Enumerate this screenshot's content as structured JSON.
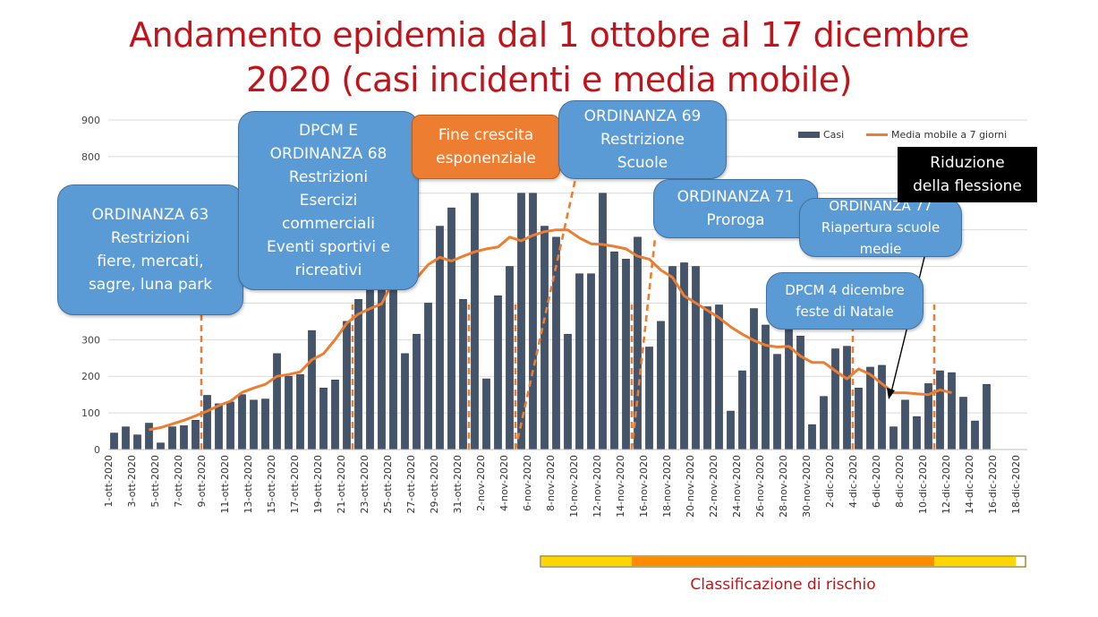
{
  "title": {
    "line1": "Andamento epidemia dal 1 ottobre al 17 dicembre",
    "line2": "2020 (casi incidenti e media mobile)"
  },
  "colors": {
    "title": "#c0141c",
    "bar": "#44546a",
    "line": "#ed7d31",
    "callout_blue": "#5b9bd5",
    "callout_orange": "#ed7d31",
    "risk_yellow": "#ffd700",
    "risk_orange": "#ff8c00"
  },
  "chart_data": {
    "type": "bar",
    "ylim": [
      0,
      900
    ],
    "yticks": [
      0,
      100,
      200,
      300,
      400,
      500,
      600,
      700,
      800,
      900
    ],
    "grid": true,
    "legend_position": "top-right",
    "categories": [
      "1-ott-2020",
      "2-ott-2020",
      "3-ott-2020",
      "4-ott-2020",
      "5-ott-2020",
      "6-ott-2020",
      "7-ott-2020",
      "8-ott-2020",
      "9-ott-2020",
      "10-ott-2020",
      "11-ott-2020",
      "12-ott-2020",
      "13-ott-2020",
      "14-ott-2020",
      "15-ott-2020",
      "16-ott-2020",
      "17-ott-2020",
      "18-ott-2020",
      "19-ott-2020",
      "20-ott-2020",
      "21-ott-2020",
      "22-ott-2020",
      "23-ott-2020",
      "24-ott-2020",
      "25-ott-2020",
      "26-ott-2020",
      "27-ott-2020",
      "28-ott-2020",
      "29-ott-2020",
      "30-ott-2020",
      "31-ott-2020",
      "1-nov-2020",
      "2-nov-2020",
      "3-nov-2020",
      "4-nov-2020",
      "5-nov-2020",
      "6-nov-2020",
      "7-nov-2020",
      "8-nov-2020",
      "9-nov-2020",
      "10-nov-2020",
      "11-nov-2020",
      "12-nov-2020",
      "13-nov-2020",
      "14-nov-2020",
      "15-nov-2020",
      "16-nov-2020",
      "17-nov-2020",
      "18-nov-2020",
      "19-nov-2020",
      "20-nov-2020",
      "21-nov-2020",
      "22-nov-2020",
      "23-nov-2020",
      "24-nov-2020",
      "25-nov-2020",
      "26-nov-2020",
      "27-nov-2020",
      "28-nov-2020",
      "29-nov-2020",
      "30-nov-2020",
      "1-dic-2020",
      "2-dic-2020",
      "3-dic-2020",
      "4-dic-2020",
      "5-dic-2020",
      "6-dic-2020",
      "7-dic-2020",
      "8-dic-2020",
      "9-dic-2020",
      "10-dic-2020",
      "11-dic-2020",
      "12-dic-2020",
      "13-dic-2020",
      "14-dic-2020",
      "15-dic-2020",
      "16-dic-2020",
      "17-dic-2020",
      "18-dic-2020"
    ],
    "xtick_labels": [
      "1-ott-2020",
      "3-ott-2020",
      "5-ott-2020",
      "7-ott-2020",
      "9-ott-2020",
      "11-ott-2020",
      "13-ott-2020",
      "15-ott-2020",
      "17-ott-2020",
      "19-ott-2020",
      "21-ott-2020",
      "23-ott-2020",
      "25-ott-2020",
      "27-ott-2020",
      "29-ott-2020",
      "31-ott-2020",
      "2-nov-2020",
      "4-nov-2020",
      "6-nov-2020",
      "8-nov-2020",
      "10-nov-2020",
      "12-nov-2020",
      "14-nov-2020",
      "16-nov-2020",
      "18-nov-2020",
      "20-nov-2020",
      "22-nov-2020",
      "24-nov-2020",
      "26-nov-2020",
      "28-nov-2020",
      "30-nov-2020",
      "2-dic-2020",
      "4-dic-2020",
      "6-dic-2020",
      "8-dic-2020",
      "10-dic-2020",
      "12-dic-2020",
      "14-dic-2020",
      "16-dic-2020",
      "18-dic-2020"
    ],
    "series": [
      {
        "name": "Casi",
        "type": "bar",
        "values": [
          45,
          62,
          40,
          72,
          18,
          62,
          65,
          80,
          148,
          125,
          130,
          150,
          135,
          138,
          262,
          200,
          205,
          325,
          168,
          190,
          350,
          410,
          450,
          450,
          450,
          262,
          315,
          400,
          610,
          660,
          410,
          700,
          193,
          420,
          500,
          700,
          700,
          610,
          580,
          315,
          480,
          480,
          700,
          540,
          520,
          580,
          280,
          350,
          500,
          510,
          500,
          390,
          395,
          105,
          215,
          385,
          340,
          260,
          340,
          310,
          68,
          145,
          275,
          282,
          168,
          225,
          230,
          62,
          135,
          90,
          180,
          215,
          210,
          143,
          78,
          178,
          0,
          0,
          0
        ]
      },
      {
        "name": "Media mobile a 7 giorni",
        "type": "line",
        "values": [
          null,
          null,
          null,
          54,
          60,
          70,
          80,
          92,
          105,
          120,
          132,
          156,
          168,
          178,
          200,
          205,
          212,
          245,
          262,
          300,
          345,
          370,
          385,
          398,
          460,
          485,
          468,
          505,
          525,
          515,
          528,
          540,
          548,
          553,
          580,
          570,
          585,
          595,
          600,
          600,
          578,
          562,
          560,
          555,
          548,
          528,
          520,
          490,
          470,
          420,
          400,
          380,
          360,
          335,
          315,
          298,
          285,
          280,
          282,
          255,
          238,
          238,
          215,
          193,
          220,
          205,
          180,
          155,
          155,
          152,
          150,
          163,
          155,
          null,
          null,
          null,
          null,
          null,
          null
        ]
      }
    ]
  },
  "annotations": [
    {
      "key": "ord63",
      "lines": [
        "ORDINANZA 63",
        "Restrizioni",
        "fiere, mercati,",
        "sagre, luna park"
      ]
    },
    {
      "key": "dpcm68",
      "lines": [
        "DPCM E",
        "ORDINANZA 68",
        "Restrizioni",
        "Esercizi",
        "commerciali",
        "Eventi sportivi e",
        "ricreativi"
      ]
    },
    {
      "key": "fine",
      "lines": [
        "Fine crescita",
        "esponenziale"
      ]
    },
    {
      "key": "ord69",
      "lines": [
        "ORDINANZA 69",
        "Restrizione",
        "Scuole"
      ]
    },
    {
      "key": "ord71",
      "lines": [
        "ORDINANZA 71",
        "Proroga"
      ]
    },
    {
      "key": "ord77",
      "lines": [
        "ORDINANZA 77",
        "Riapertura scuole",
        "medie"
      ]
    },
    {
      "key": "dpcm4",
      "lines": [
        "DPCM 4 dicembre",
        "feste di Natale"
      ]
    },
    {
      "key": "riduzione",
      "lines": [
        "Riduzione",
        "della flessione"
      ]
    }
  ],
  "risk": {
    "label": "Classificazione di rischio",
    "segments": [
      {
        "from": "6-nov-2020",
        "to": "15-nov-2020",
        "color": "#ffd700"
      },
      {
        "from": "15-nov-2020",
        "to": "11-dic-2020",
        "color": "#ff8c00"
      },
      {
        "from": "11-dic-2020",
        "to": "18-dic-2020",
        "color": "#ffd700"
      }
    ]
  },
  "markers": [
    "9-ott-2020",
    "22-ott-2020",
    "1-nov-2020",
    "5-nov-2020",
    "15-nov-2020",
    "4-dic-2020",
    "11-dic-2020"
  ]
}
